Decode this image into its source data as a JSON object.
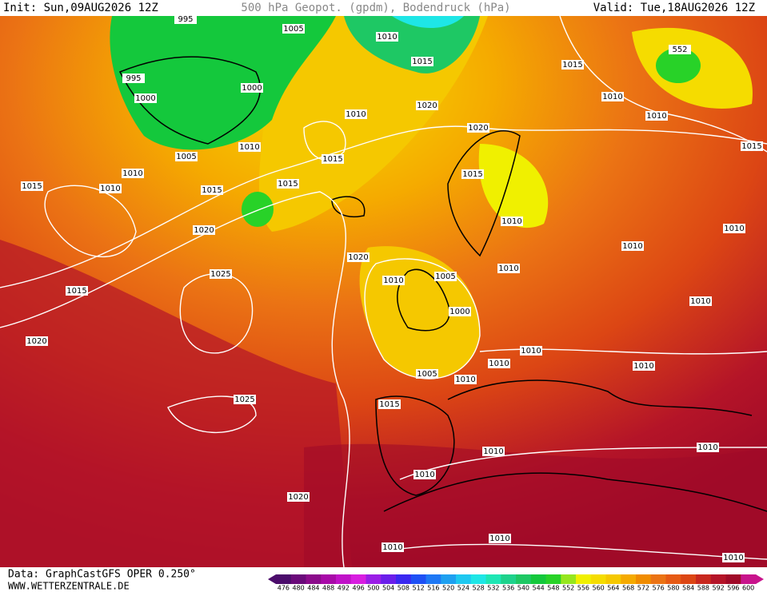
{
  "header": {
    "init": "Init: Sun,09AUG2026  12Z",
    "title": "500 hPa Geopot. (gpdm), Bodendruck (hPa)",
    "valid": "Valid: Tue,18AUG2026  12Z"
  },
  "footer": {
    "data_source": "Data: GraphCastGFS  OPER  0.250°",
    "website": "WWW.WETTERZENTRALE.DE"
  },
  "isobar_labels": [
    "995",
    "1005",
    "1010",
    "995",
    "1000",
    "1000",
    "1015",
    "1015",
    "552",
    "1010",
    "1020",
    "1010",
    "1010",
    "1020",
    "1005",
    "1010",
    "1015",
    "1015",
    "1010",
    "1015",
    "1010",
    "1015",
    "1015",
    "1010",
    "1015",
    "1020",
    "1010",
    "1010",
    "1020",
    "1010",
    "1025",
    "1010",
    "1005",
    "1015",
    "1000",
    "1010",
    "1020",
    "1010",
    "1010",
    "1010",
    "1005",
    "1010",
    "1025",
    "1015",
    "1010",
    "1010",
    "1010",
    "1020",
    "1010",
    "1010",
    "1010"
  ],
  "colorbar": {
    "ticks": [
      476,
      480,
      484,
      488,
      492,
      496,
      500,
      504,
      508,
      512,
      516,
      520,
      524,
      528,
      532,
      536,
      540,
      544,
      548,
      552,
      556,
      560,
      564,
      568,
      572,
      576,
      580,
      584,
      588,
      592,
      596,
      600
    ],
    "colors": [
      "#4b0c6b",
      "#6a0a7a",
      "#8b0b8b",
      "#a80aa8",
      "#c012c8",
      "#d81ee0",
      "#9a1ee6",
      "#6a1eea",
      "#3a28f0",
      "#1e50f5",
      "#1e78f5",
      "#1ea0f0",
      "#1ec8f0",
      "#1ee6e6",
      "#1ee6b4",
      "#1ed28c",
      "#1ec864",
      "#14c83c",
      "#28d228",
      "#96e61e",
      "#f0f000",
      "#f5dc00",
      "#f5c800",
      "#f5aa00",
      "#f08c00",
      "#eb7314",
      "#e65a14",
      "#dc4614",
      "#c8281e",
      "#b41428",
      "#a00a28",
      "#c8148c"
    ]
  }
}
